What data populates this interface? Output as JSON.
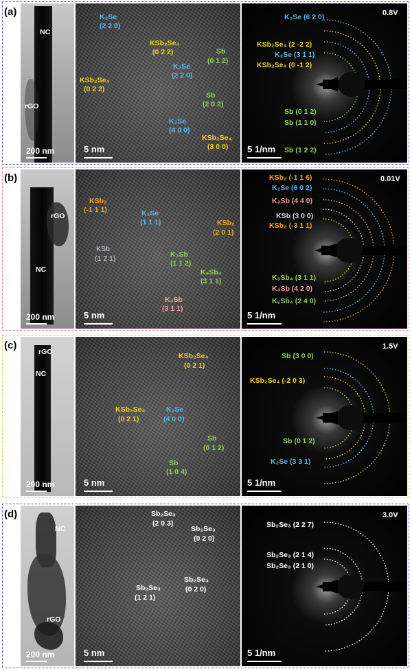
{
  "panels": [
    {
      "label": "(a)",
      "border_color": "#3b3b9a",
      "tem": {
        "nc": "NC",
        "rgo": "rGO",
        "scale": "200 nm"
      },
      "hrtem": {
        "scale": "5 nm",
        "labels": [
          {
            "text": "K₂Se",
            "hkl": "(2 2 0)",
            "color": "blue"
          },
          {
            "text": "KSb₂Se₄",
            "hkl": "(0 2 2)",
            "color": "yellow"
          },
          {
            "text": "Sb",
            "hkl": "(0 1 2)",
            "color": "green"
          },
          {
            "text": "KSb₂Se₄",
            "hkl": "(0 2 2)",
            "color": "yellow"
          },
          {
            "text": "K₂Se",
            "hkl": "(2 2 0)",
            "color": "blue"
          },
          {
            "text": "Sb",
            "hkl": "(2 0 2)",
            "color": "green"
          },
          {
            "text": "K₂Se",
            "hkl": "(4 0 0)",
            "color": "blue"
          },
          {
            "text": "KSb₂Se₄",
            "hkl": "(3 0 0)",
            "color": "yellow"
          }
        ]
      },
      "saed": {
        "scale": "5 1/nm",
        "voltage": "0.8V",
        "labels": [
          {
            "text": "K₂Se (6 2 0)",
            "color": "blue"
          },
          {
            "text": "KSb₂Se₄ (2 -2 2)",
            "color": "yellow"
          },
          {
            "text": "K₂Se (3 1 1)",
            "color": "blue"
          },
          {
            "text": "KSb₂Se₄ (0 -1 2)",
            "color": "yellow"
          },
          {
            "text": "Sb (0 1 2)",
            "color": "green"
          },
          {
            "text": "Sb (1 1 0)",
            "color": "green"
          },
          {
            "text": "Sb (1 2 2)",
            "color": "green"
          }
        ]
      }
    },
    {
      "label": "(b)",
      "border_color": "#d9639a",
      "tem": {
        "nc": "NC",
        "rgo": "rGO",
        "scale": "200 nm"
      },
      "hrtem": {
        "scale": "5 nm",
        "labels": [
          {
            "text": "KSb₂",
            "hkl": "(-1 1 1)",
            "color": "orange"
          },
          {
            "text": "K₂Se",
            "hkl": "(1 1 1)",
            "color": "blue"
          },
          {
            "text": "KSb₂",
            "hkl": "(2 0 1)",
            "color": "orange"
          },
          {
            "text": "KSb",
            "hkl": "(1 2 1)",
            "color": "gray"
          },
          {
            "text": "K₃Sb",
            "hkl": "(1 1 2)",
            "color": "green"
          },
          {
            "text": "K₅Sb₄",
            "hkl": "(3 1 1)",
            "color": "green"
          },
          {
            "text": "K₃Sb",
            "hkl": "(3 1 1)",
            "color": "pink"
          }
        ]
      },
      "saed": {
        "scale": "5 1/nm",
        "voltage": "0.01V",
        "labels": [
          {
            "text": "KSb₂ (-1 1 6)",
            "color": "orange"
          },
          {
            "text": "K₂Se (6 0 2)",
            "color": "blue"
          },
          {
            "text": "K₃Sb (4 4 0)",
            "color": "pink"
          },
          {
            "text": "KSb (3 0 0)",
            "color": "gray"
          },
          {
            "text": "KSb₂ (-3 1 1)",
            "color": "orange"
          },
          {
            "text": "K₅Sb₄ (3 1 1)",
            "color": "green"
          },
          {
            "text": "K₃Sb (4 2 0)",
            "color": "pink"
          },
          {
            "text": "K₅Sb₄ (2 4 0)",
            "color": "green"
          }
        ]
      }
    },
    {
      "label": "(c)",
      "border_color": "#e0b53a",
      "tem": {
        "nc": "NC",
        "rgo": "rGO",
        "scale": "200 nm"
      },
      "hrtem": {
        "scale": "5 nm",
        "labels": [
          {
            "text": "KSb₂Se₄",
            "hkl": "(0 2 1)",
            "color": "yellow"
          },
          {
            "text": "KSb₂Se₄",
            "hkl": "(0 2 1)",
            "color": "yellow"
          },
          {
            "text": "K₂Se",
            "hkl": "(4 0 0)",
            "color": "blue"
          },
          {
            "text": "Sb",
            "hkl": "(0 1 2)",
            "color": "green"
          },
          {
            "text": "Sb",
            "hkl": "(1 0 4)",
            "color": "green"
          }
        ]
      },
      "saed": {
        "scale": "5 1/nm",
        "voltage": "1.5V",
        "labels": [
          {
            "text": "Sb (3 0 0)",
            "color": "green"
          },
          {
            "text": "KSb₂Se₄ (-2 0 3)",
            "color": "yellow"
          },
          {
            "text": "Sb (0 1 2)",
            "color": "green"
          },
          {
            "text": "K₂Se (3 3 1)",
            "color": "blue"
          }
        ]
      }
    },
    {
      "label": "(d)",
      "border_color": "#3b3b9a",
      "tem": {
        "nc": "NC",
        "rgo": "rGO",
        "scale": "200 nm"
      },
      "hrtem": {
        "scale": "5 nm",
        "labels": [
          {
            "text": "Sb₂Se₃",
            "hkl": "(2 0 3)",
            "color": "white"
          },
          {
            "text": "Sb₂Se₃",
            "hkl": "(0 2 0)",
            "color": "white"
          },
          {
            "text": "Sb₂Se₃",
            "hkl": "(1 2 1)",
            "color": "white"
          },
          {
            "text": "Sb₂Se₃",
            "hkl": "(0 2 0)",
            "color": "white"
          }
        ]
      },
      "saed": {
        "scale": "5 1/nm",
        "voltage": "3.0V",
        "labels": [
          {
            "text": "Sb₂Se₃ (2 2 7)",
            "color": "white"
          },
          {
            "text": "Sb₂Se₃ (2 1 4)",
            "color": "white"
          },
          {
            "text": "Sb₂Se₃ (2 1 0)",
            "color": "white"
          }
        ]
      }
    }
  ],
  "colors": {
    "yellow": "#f2d21a",
    "blue": "#5ab7e8",
    "green": "#8ed35a",
    "orange": "#f5a623",
    "pink": "#f4a0a0",
    "gray": "#d5d5e6",
    "white": "#ffffff"
  }
}
